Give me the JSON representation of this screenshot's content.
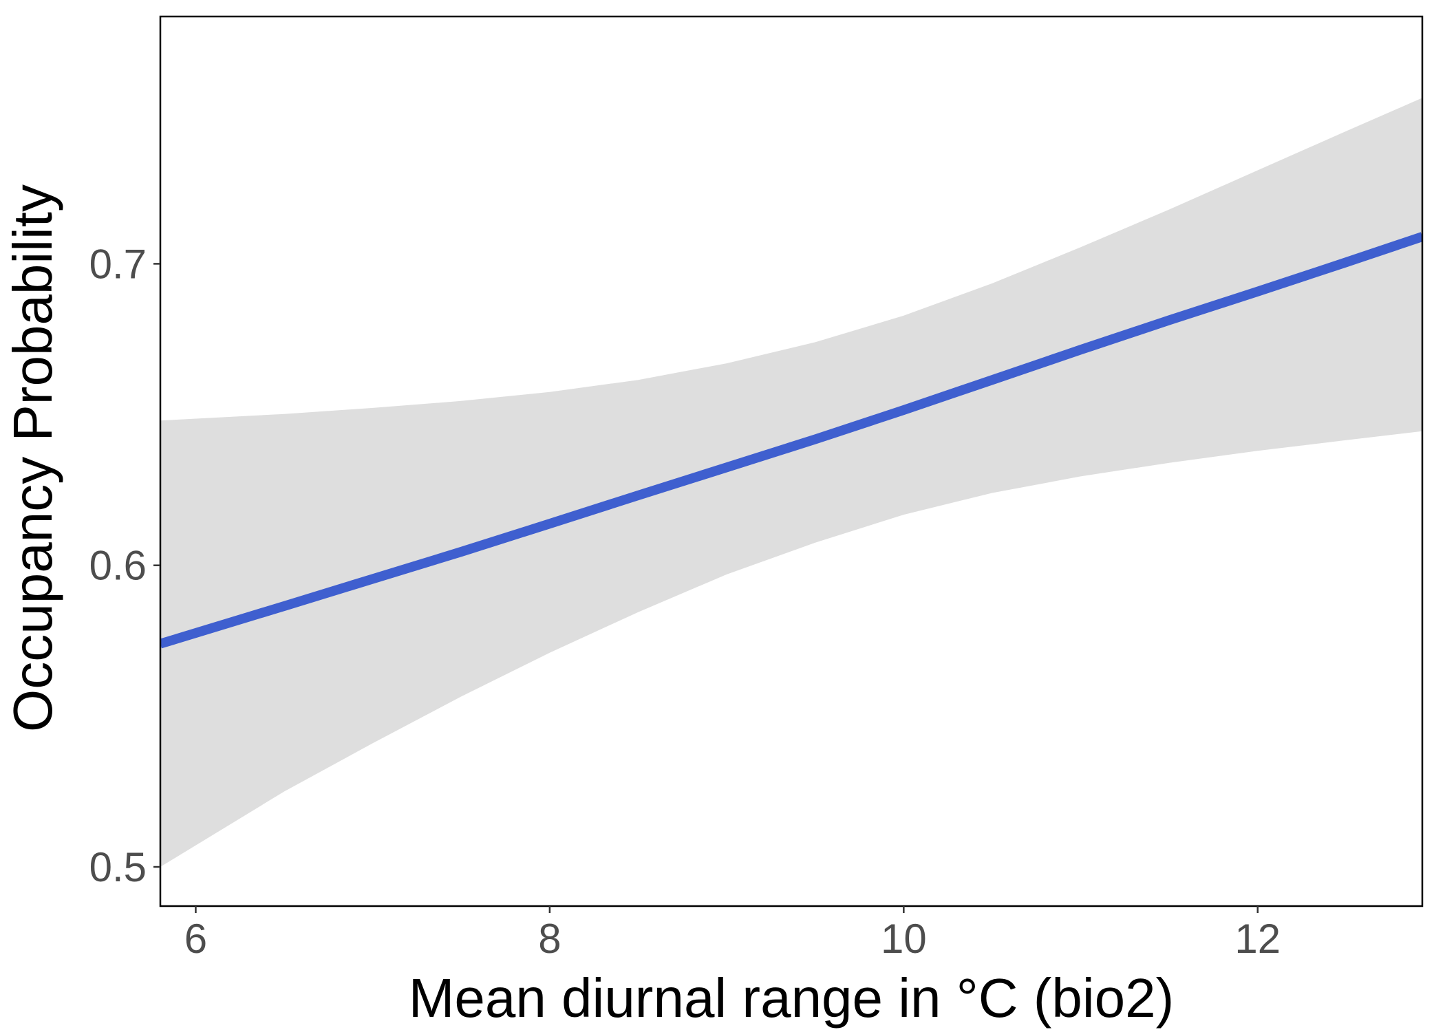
{
  "chart_data": {
    "type": "line",
    "title": "",
    "xlabel": "Mean diurnal range in °C (bio2)",
    "ylabel": "Occupancy Probability",
    "xlim": [
      5.8,
      12.93
    ],
    "ylim": [
      0.487,
      0.782
    ],
    "x_ticks": [
      6,
      8,
      10,
      12
    ],
    "y_ticks": [
      0.5,
      0.6,
      0.7
    ],
    "x_tick_labels": [
      "6",
      "8",
      "10",
      "12"
    ],
    "y_tick_labels": [
      "0.5",
      "0.6",
      "0.7"
    ],
    "grid": false,
    "legend": "none",
    "series": [
      {
        "x": [
          5.8,
          6.5,
          7.0,
          7.5,
          8.0,
          8.5,
          9.0,
          9.5,
          10.0,
          10.5,
          11.0,
          11.5,
          12.0,
          12.5,
          12.93
        ],
        "y": [
          0.574,
          0.5865,
          0.5955,
          0.6045,
          0.6138,
          0.6232,
          0.6325,
          0.6418,
          0.6515,
          0.6615,
          0.6715,
          0.6813,
          0.6908,
          0.7005,
          0.709
        ],
        "lower": [
          0.5,
          0.525,
          0.541,
          0.5565,
          0.571,
          0.5845,
          0.597,
          0.6075,
          0.6168,
          0.624,
          0.6295,
          0.634,
          0.638,
          0.6415,
          0.6445
        ],
        "upper": [
          0.648,
          0.6502,
          0.6522,
          0.6545,
          0.6575,
          0.6615,
          0.667,
          0.674,
          0.6828,
          0.6935,
          0.7055,
          0.718,
          0.731,
          0.744,
          0.755
        ]
      }
    ],
    "colors": {
      "line": "#3f5fcf",
      "ribbon": "#dedede",
      "panel_border": "#000000",
      "tick_text": "#4d4d4d",
      "axis_title": "#000000"
    }
  }
}
